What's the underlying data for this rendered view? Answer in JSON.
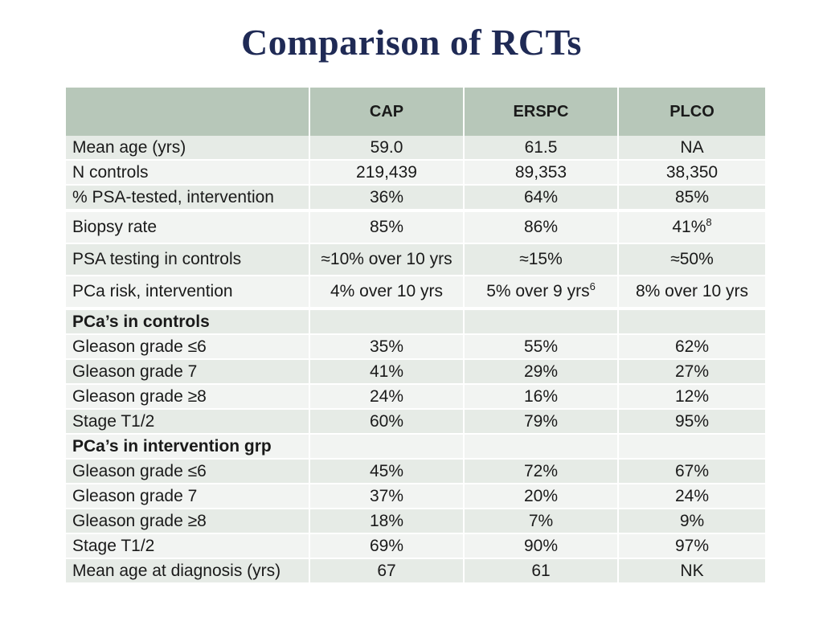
{
  "slide": {
    "title": "Comparison of RCTs"
  },
  "table": {
    "headers": [
      "",
      "CAP",
      "ERSPC",
      "PLCO"
    ],
    "rows": [
      {
        "label": "Mean age (yrs)",
        "cap": "59.0",
        "erspc": "61.5",
        "plco": "NA"
      },
      {
        "label": "N controls",
        "cap": "219,439",
        "erspc": "89,353",
        "plco": "38,350"
      },
      {
        "label": "% PSA-tested, intervention",
        "cap": "36%",
        "erspc": "64%",
        "plco": "85%"
      },
      {
        "label": "Biopsy rate",
        "cap": "85%",
        "erspc": "86%",
        "plco": "41%",
        "plco_sup": "8"
      },
      {
        "label": "PSA testing in controls",
        "cap": "≈10% over 10 yrs",
        "erspc": "≈15%",
        "plco": "≈50%"
      },
      {
        "label": "PCa risk, intervention",
        "cap": "4% over 10 yrs",
        "erspc": "5% over 9 yrs",
        "erspc_sup": "6",
        "plco": "8% over 10 yrs"
      },
      {
        "label": "PCa’s in controls",
        "cap": "",
        "erspc": "",
        "plco": ""
      },
      {
        "label": "Gleason grade ≤6",
        "cap": "35%",
        "erspc": "55%",
        "plco": "62%"
      },
      {
        "label": "Gleason grade 7",
        "cap": "41%",
        "erspc": "29%",
        "plco": "27%"
      },
      {
        "label": "Gleason grade ≥8",
        "cap": "24%",
        "erspc": "16%",
        "plco": "12%"
      },
      {
        "label": "Stage T1/2",
        "cap": "60%",
        "erspc": "79%",
        "plco": "95%"
      },
      {
        "label": "PCa’s in intervention grp",
        "cap": "",
        "erspc": "",
        "plco": ""
      },
      {
        "label": "Gleason grade ≤6",
        "cap": "45%",
        "erspc": "72%",
        "plco": "67%"
      },
      {
        "label": "Gleason grade 7",
        "cap": "37%",
        "erspc": "20%",
        "plco": "24%"
      },
      {
        "label": "Gleason grade ≥8",
        "cap": "18%",
        "erspc": "7%",
        "plco": "9%"
      },
      {
        "label": "Stage T1/2",
        "cap": "69%",
        "erspc": "90%",
        "plco": "97%"
      },
      {
        "label": "Mean age at diagnosis (yrs)",
        "cap": "67",
        "erspc": "61",
        "plco": "NK"
      }
    ]
  },
  "colors": {
    "title": "#1f2a55",
    "header_bg": "#b7c7b9",
    "row_dark": "#e6ebe6",
    "row_light": "#f2f4f2"
  }
}
